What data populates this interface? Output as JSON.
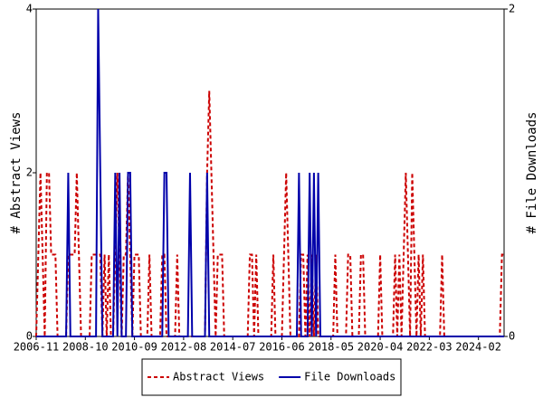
{
  "chart_data": {
    "type": "line",
    "categories": [
      "2006-11",
      null,
      null,
      null,
      null,
      null,
      null,
      null,
      null,
      null,
      null,
      null,
      null,
      null,
      null,
      null,
      null,
      null,
      null,
      null,
      null,
      null,
      null,
      "2008-10",
      null,
      null,
      null,
      null,
      null,
      null,
      null,
      null,
      null,
      null,
      null,
      null,
      null,
      null,
      null,
      null,
      null,
      null,
      null,
      null,
      null,
      null,
      "2010-09",
      null,
      null,
      null,
      null,
      null,
      null,
      null,
      null,
      null,
      null,
      null,
      null,
      null,
      null,
      null,
      null,
      null,
      null,
      null,
      null,
      null,
      null,
      "2012-08",
      null,
      null,
      null,
      null,
      null,
      null,
      null,
      null,
      null,
      null,
      null,
      null,
      null,
      null,
      null,
      null,
      null,
      null,
      null,
      null,
      null,
      null,
      "2014-07",
      null,
      null,
      null,
      null,
      null,
      null,
      null,
      null,
      null,
      null,
      null,
      null,
      null,
      null,
      null,
      null,
      null,
      null,
      null,
      null,
      null,
      null,
      "2016-06",
      null,
      null,
      null,
      null,
      null,
      null,
      null,
      null,
      null,
      null,
      null,
      null,
      null,
      null,
      null,
      null,
      null,
      null,
      null,
      null,
      null,
      null,
      "2018-05",
      null,
      null,
      null,
      null,
      null,
      null,
      null,
      null,
      null,
      null,
      null,
      null,
      null,
      null,
      null,
      null,
      null,
      null,
      null,
      null,
      null,
      null,
      "2020-04",
      null,
      null,
      null,
      null,
      null,
      null,
      null,
      null,
      null,
      null,
      null,
      null,
      null,
      null,
      null,
      null,
      null,
      null,
      null,
      null,
      null,
      null,
      "2022-03",
      null,
      null,
      null,
      null,
      null,
      null,
      null,
      null,
      null,
      null,
      null,
      null,
      null,
      null,
      null,
      null,
      null,
      null,
      null,
      null,
      null,
      null,
      "2024-02",
      null,
      null,
      null,
      null,
      null,
      null,
      null,
      null,
      null,
      null,
      null,
      null
    ],
    "series": [
      {
        "name": "Abstract Views",
        "color": "#cc0000",
        "axis": "y",
        "values": [
          0,
          1,
          2,
          1,
          0,
          2,
          2,
          1,
          1,
          1,
          0,
          0,
          0,
          0,
          0,
          1,
          1,
          1,
          1,
          2,
          1,
          0,
          0,
          0,
          0,
          0,
          1,
          1,
          1,
          1,
          1,
          0,
          1,
          0,
          1,
          0,
          0,
          1,
          2,
          1,
          0,
          1,
          1,
          2,
          1,
          0,
          1,
          1,
          1,
          0,
          0,
          0,
          0,
          1,
          0,
          0,
          0,
          0,
          0,
          1,
          1,
          0,
          0,
          0,
          0,
          0,
          1,
          0,
          0,
          0,
          0,
          0,
          0,
          0,
          0,
          0,
          0,
          0,
          0,
          0,
          2,
          3,
          2,
          1,
          0,
          1,
          1,
          1,
          0,
          0,
          0,
          0,
          0,
          0,
          0,
          0,
          0,
          0,
          0,
          0,
          1,
          1,
          0,
          1,
          0,
          0,
          0,
          0,
          0,
          0,
          0,
          1,
          0,
          0,
          0,
          0,
          1,
          2,
          1,
          0,
          0,
          0,
          0,
          0,
          1,
          1,
          0,
          1,
          0,
          1,
          0,
          1,
          0,
          0,
          0,
          0,
          0,
          0,
          0,
          0,
          1,
          0,
          0,
          0,
          0,
          0,
          1,
          1,
          0,
          0,
          0,
          0,
          1,
          1,
          0,
          0,
          0,
          0,
          0,
          0,
          0,
          1,
          0,
          0,
          0,
          0,
          0,
          0,
          1,
          0,
          1,
          0,
          1,
          2,
          1,
          0,
          2,
          1,
          0,
          1,
          0,
          1,
          0,
          0,
          0,
          0,
          0,
          0,
          0,
          0,
          1,
          0,
          0,
          0,
          0,
          0,
          0,
          0,
          0,
          0,
          0,
          0,
          0,
          0,
          0,
          0,
          0,
          0,
          0,
          0,
          0,
          0,
          0,
          0,
          0,
          0,
          0,
          0,
          1,
          1
        ]
      },
      {
        "name": "File Downloads",
        "color": "#0000aa",
        "axis": "y2",
        "values": [
          0,
          0,
          0,
          0,
          0,
          0,
          0,
          0,
          0,
          0,
          0,
          0,
          0,
          0,
          0,
          1,
          0,
          0,
          0,
          0,
          0,
          0,
          0,
          0,
          0,
          0,
          0,
          0,
          0,
          2,
          1,
          0,
          0,
          0,
          0,
          0,
          0,
          1,
          0,
          1,
          0,
          0,
          0,
          1,
          1,
          0,
          0,
          0,
          0,
          0,
          0,
          0,
          0,
          0,
          0,
          0,
          0,
          0,
          0,
          0,
          1,
          1,
          0,
          0,
          0,
          0,
          0,
          0,
          0,
          0,
          0,
          0,
          1,
          0,
          0,
          0,
          0,
          0,
          0,
          0,
          1,
          0,
          0,
          0,
          0,
          0,
          0,
          0,
          0,
          0,
          0,
          0,
          0,
          0,
          0,
          0,
          0,
          0,
          0,
          0,
          0,
          0,
          0,
          0,
          0,
          0,
          0,
          0,
          0,
          0,
          0,
          0,
          0,
          0,
          0,
          0,
          0,
          0,
          0,
          0,
          0,
          0,
          0,
          1,
          0,
          0,
          0,
          0,
          1,
          0,
          1,
          0,
          1,
          0,
          0,
          0,
          0,
          0,
          0,
          0,
          0,
          0,
          0,
          0,
          0,
          0,
          0,
          0,
          0,
          0,
          0,
          0,
          0,
          0,
          0,
          0,
          0,
          0,
          0,
          0,
          0,
          0,
          0,
          0,
          0,
          0,
          0,
          0,
          0,
          0,
          0,
          0,
          0,
          0,
          0,
          0,
          0,
          0,
          0,
          0,
          0,
          0,
          0,
          0,
          0,
          0,
          0,
          0,
          0,
          0,
          0,
          0,
          0,
          0,
          0,
          0,
          0,
          0,
          0,
          0,
          0,
          0,
          0,
          0,
          0,
          0,
          0,
          0,
          0,
          0,
          0,
          0,
          0,
          0,
          0,
          0,
          0,
          0,
          0,
          0
        ]
      }
    ],
    "y_label": "# Abstract Views",
    "y2_label": "# File Downloads",
    "ylim": [
      0,
      4
    ],
    "yticks": [
      0,
      2,
      4
    ],
    "y2lim": [
      0,
      2
    ],
    "y2ticks": [
      0,
      2
    ],
    "legend": "bottom"
  }
}
